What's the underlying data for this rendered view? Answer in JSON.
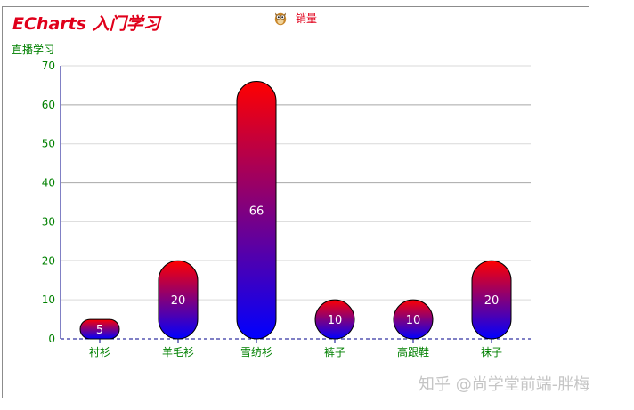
{
  "chart_data": {
    "type": "bar",
    "title": "ECharts 入门学习",
    "ylabel": "直播学习",
    "xlabel": "",
    "categories": [
      "衬衫",
      "羊毛衫",
      "雪纺衫",
      "裤子",
      "高跟鞋",
      "袜子"
    ],
    "series": [
      {
        "name": "销量",
        "values": [
          5,
          20,
          66,
          10,
          10,
          20
        ]
      }
    ],
    "ylim": [
      0,
      70
    ],
    "yticks": [
      "0",
      "10",
      "20",
      "30",
      "40",
      "50",
      "60",
      "70"
    ],
    "legend": "top-center",
    "grid": true,
    "bar_gradient": {
      "top": "#ff0000",
      "bottom": "#0000ff"
    },
    "colors": {
      "title": "#e0001b",
      "axis_text": "#008000",
      "axis_line": "#00008b",
      "data_label": "#ffffff"
    }
  },
  "legend_icon": "owl-icon",
  "watermark": "知乎 @尚学堂前端-胖梅"
}
